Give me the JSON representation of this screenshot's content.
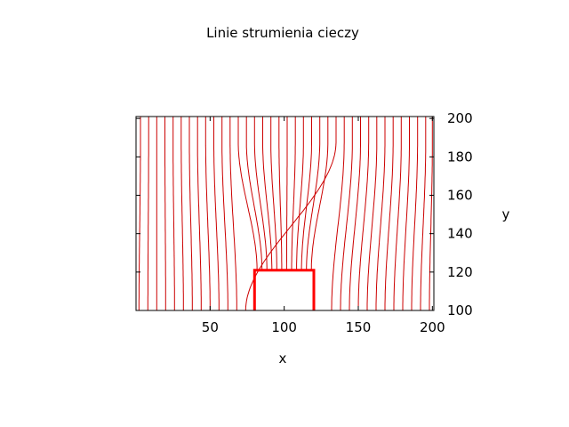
{
  "chart_data": {
    "type": "line",
    "title": "Linie strumienia cieczy",
    "xlabel": "x",
    "ylabel": "y",
    "xlim": [
      0,
      201
    ],
    "ylim": [
      100,
      201
    ],
    "xticks": [
      50,
      100,
      150,
      200
    ],
    "yticks": [
      100,
      120,
      140,
      160,
      180,
      200
    ],
    "grid": false,
    "line_color": "#cc0000",
    "obstacle": {
      "x": [
        80,
        80,
        120,
        120
      ],
      "y": [
        100,
        121,
        121,
        100
      ],
      "color": "#ff0000"
    },
    "streamlines_bottom_x": [
      2,
      8,
      14,
      20,
      26,
      32,
      38,
      44,
      50,
      56,
      62,
      68,
      74,
      132,
      138,
      144,
      150,
      156,
      162,
      168,
      174,
      180,
      186,
      192,
      198
    ],
    "streamlines_top_x": [
      3,
      8.5,
      14,
      19.5,
      25,
      30.5,
      36,
      41.5,
      47,
      52.5,
      58,
      63.5,
      69,
      74.5,
      80,
      85.5,
      91,
      96.5,
      102,
      107.5,
      113,
      118.5,
      124,
      129.5,
      135,
      140.5,
      146,
      151.5,
      157,
      162.5,
      168,
      173.5,
      179,
      184.5,
      190,
      195.5,
      200
    ]
  }
}
